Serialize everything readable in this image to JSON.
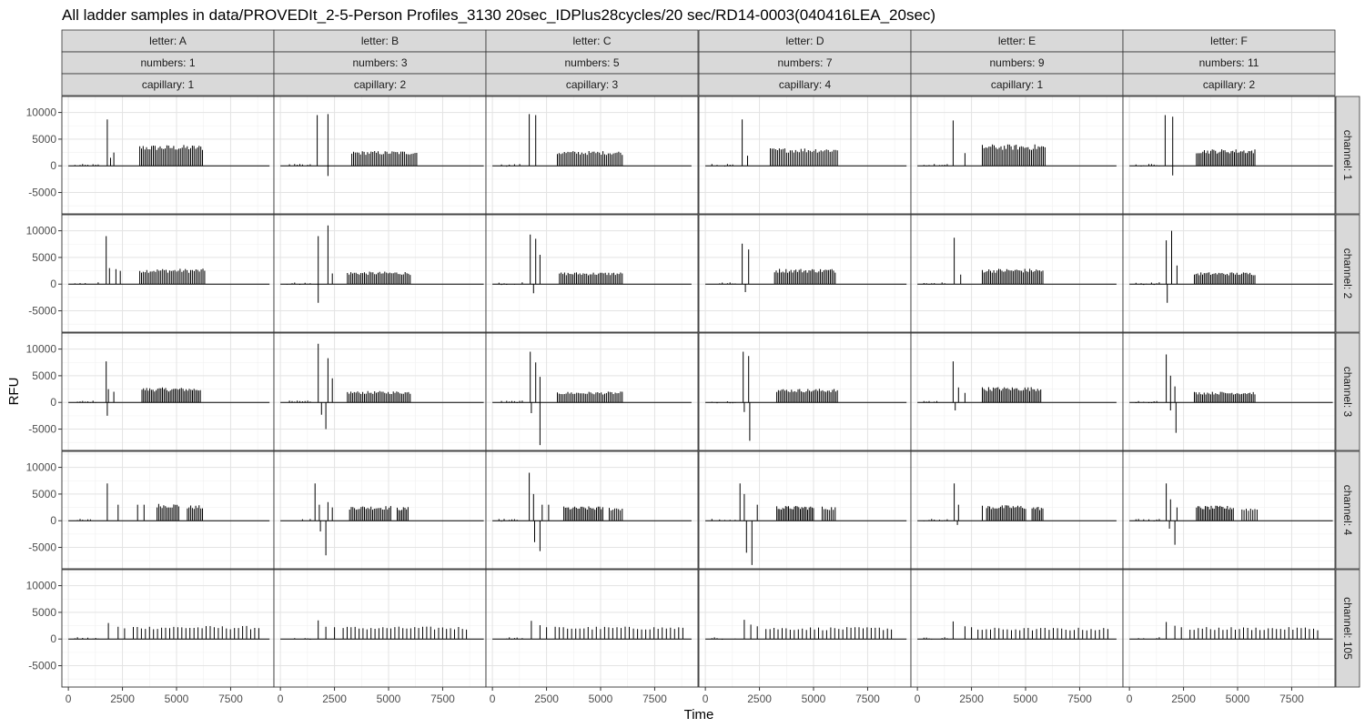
{
  "chart_data": {
    "type": "line",
    "title": "All ladder samples in data/PROVEDIt_2-5-Person Profiles_3130 20sec_IDPlus28cycles/20 sec/RD14-0003(040416LEA_20sec)",
    "xlabel": "Time",
    "ylabel": "RFU",
    "xlim": [
      -300,
      9500
    ],
    "ylim": [
      -9000,
      13000
    ],
    "x_ticks": [
      0,
      2500,
      5000,
      7500
    ],
    "y_ticks": [
      -5000,
      0,
      5000,
      10000
    ],
    "grid": true,
    "facet_columns": [
      {
        "letter": "letter: A",
        "numbers": "numbers: 1",
        "capillary": "capillary: 1"
      },
      {
        "letter": "letter: B",
        "numbers": "numbers: 3",
        "capillary": "capillary: 2"
      },
      {
        "letter": "letter: C",
        "numbers": "numbers: 5",
        "capillary": "capillary: 3"
      },
      {
        "letter": "letter: D",
        "numbers": "numbers: 7",
        "capillary": "capillary: 4"
      },
      {
        "letter": "letter: E",
        "numbers": "numbers: 9",
        "capillary": "capillary: 1"
      },
      {
        "letter": "letter: F",
        "numbers": "numbers: 11",
        "capillary": "capillary: 2"
      }
    ],
    "facet_rows": [
      "channel: 1",
      "channel: 2",
      "channel: 3",
      "channel: 4",
      "channel: 105"
    ],
    "series_end_x": [
      9300,
      9400,
      9200,
      9300,
      9200,
      9400
    ],
    "panels": [
      [
        {
          "primer": [
            [
              1800,
              8700
            ],
            [
              1950,
              1500
            ],
            [
              2100,
              2500
            ]
          ],
          "neg": [],
          "clusters": [
            {
              "start": 3300,
              "end": 6200,
              "count": 38,
              "height": 3500
            }
          ]
        },
        {
          "primer": [
            [
              1750,
              9000
            ],
            [
              1900,
              3000
            ],
            [
              2200,
              2800
            ],
            [
              2400,
              2500
            ]
          ],
          "neg": [],
          "clusters": [
            {
              "start": 3300,
              "end": 6300,
              "count": 38,
              "height": 2600
            }
          ]
        },
        {
          "primer": [
            [
              1750,
              7700
            ],
            [
              1850,
              2500
            ],
            [
              2100,
              2000
            ]
          ],
          "neg": [
            [
              1800,
              -2500
            ]
          ],
          "clusters": [
            {
              "start": 3400,
              "end": 6100,
              "count": 38,
              "height": 2500
            }
          ]
        },
        {
          "primer": [
            [
              1800,
              7000
            ],
            [
              2300,
              3000
            ],
            [
              3200,
              3000
            ],
            [
              3500,
              3000
            ]
          ],
          "neg": [],
          "clusters": [
            {
              "start": 4100,
              "end": 5100,
              "count": 14,
              "height": 2900
            },
            {
              "start": 5500,
              "end": 6200,
              "count": 10,
              "height": 2600
            }
          ]
        },
        {
          "primer": [
            [
              1850,
              3000
            ],
            [
              2300,
              2300
            ],
            [
              2600,
              2000
            ]
          ],
          "neg": [],
          "clusters": [
            {
              "start": 3000,
              "end": 8800,
              "count": 32,
              "height": 2200
            }
          ]
        }
      ],
      [
        {
          "primer": [
            [
              1700,
              9500
            ],
            [
              2200,
              9700
            ]
          ],
          "neg": [
            [
              2200,
              -1900
            ]
          ],
          "clusters": [
            {
              "start": 3300,
              "end": 6300,
              "count": 38,
              "height": 2500
            }
          ]
        },
        {
          "primer": [
            [
              1750,
              9000
            ],
            [
              2200,
              11000
            ],
            [
              2400,
              2000
            ]
          ],
          "neg": [
            [
              1750,
              -3500
            ]
          ],
          "clusters": [
            {
              "start": 3100,
              "end": 6000,
              "count": 38,
              "height": 2100
            }
          ]
        },
        {
          "primer": [
            [
              1750,
              11000
            ],
            [
              2200,
              8300
            ],
            [
              2400,
              4500
            ]
          ],
          "neg": [
            [
              1900,
              -2300
            ],
            [
              2100,
              -5000
            ]
          ],
          "clusters": [
            {
              "start": 3100,
              "end": 6000,
              "count": 38,
              "height": 1900
            }
          ]
        },
        {
          "primer": [
            [
              1600,
              7000
            ],
            [
              1800,
              3000
            ],
            [
              2200,
              3500
            ],
            [
              2400,
              2500
            ]
          ],
          "neg": [
            [
              1850,
              -2000
            ],
            [
              2100,
              -6500
            ]
          ],
          "clusters": [
            {
              "start": 3200,
              "end": 5100,
              "count": 26,
              "height": 2500
            },
            {
              "start": 5400,
              "end": 5900,
              "count": 8,
              "height": 2300
            }
          ]
        },
        {
          "primer": [
            [
              1750,
              3500
            ],
            [
              2100,
              2300
            ],
            [
              2500,
              2200
            ]
          ],
          "neg": [],
          "clusters": [
            {
              "start": 2900,
              "end": 8600,
              "count": 32,
              "height": 2100
            }
          ]
        }
      ],
      [
        {
          "primer": [
            [
              1700,
              9700
            ],
            [
              2000,
              9500
            ]
          ],
          "neg": [],
          "clusters": [
            {
              "start": 3000,
              "end": 6000,
              "count": 38,
              "height": 2500
            }
          ]
        },
        {
          "primer": [
            [
              1750,
              9300
            ],
            [
              2000,
              8500
            ],
            [
              2200,
              5500
            ]
          ],
          "neg": [
            [
              1900,
              -1700
            ]
          ],
          "clusters": [
            {
              "start": 3100,
              "end": 6000,
              "count": 38,
              "height": 2000
            }
          ]
        },
        {
          "primer": [
            [
              1750,
              9500
            ],
            [
              2000,
              7500
            ],
            [
              2200,
              4800
            ]
          ],
          "neg": [
            [
              1800,
              -2000
            ],
            [
              2200,
              -8000
            ]
          ],
          "clusters": [
            {
              "start": 3000,
              "end": 6000,
              "count": 38,
              "height": 1800
            }
          ]
        },
        {
          "primer": [
            [
              1700,
              9000
            ],
            [
              1900,
              5000
            ],
            [
              2300,
              3000
            ],
            [
              2600,
              3000
            ]
          ],
          "neg": [
            [
              1950,
              -4000
            ],
            [
              2200,
              -5700
            ]
          ],
          "clusters": [
            {
              "start": 3300,
              "end": 5100,
              "count": 26,
              "height": 2400
            },
            {
              "start": 5400,
              "end": 6000,
              "count": 8,
              "height": 2300
            }
          ]
        },
        {
          "primer": [
            [
              1800,
              3400
            ],
            [
              2200,
              2600
            ],
            [
              2500,
              2200
            ]
          ],
          "neg": [],
          "clusters": [
            {
              "start": 2900,
              "end": 8800,
              "count": 32,
              "height": 2100
            }
          ]
        }
      ],
      [
        {
          "primer": [
            [
              1700,
              8700
            ],
            [
              1950,
              1900
            ]
          ],
          "neg": [],
          "clusters": [
            {
              "start": 3000,
              "end": 6100,
              "count": 38,
              "height": 3000
            }
          ]
        },
        {
          "primer": [
            [
              1700,
              7600
            ],
            [
              2000,
              6500
            ]
          ],
          "neg": [
            [
              1850,
              -1500
            ]
          ],
          "clusters": [
            {
              "start": 3200,
              "end": 6000,
              "count": 38,
              "height": 2600
            }
          ]
        },
        {
          "primer": [
            [
              1750,
              9500
            ],
            [
              2000,
              8700
            ]
          ],
          "neg": [
            [
              1800,
              -1800
            ],
            [
              2050,
              -7200
            ]
          ],
          "clusters": [
            {
              "start": 3300,
              "end": 6100,
              "count": 38,
              "height": 2300
            }
          ]
        },
        {
          "primer": [
            [
              1600,
              7000
            ],
            [
              1800,
              5000
            ],
            [
              2400,
              3000
            ]
          ],
          "neg": [
            [
              1900,
              -6000
            ],
            [
              2150,
              -8300
            ]
          ],
          "clusters": [
            {
              "start": 3300,
              "end": 5000,
              "count": 26,
              "height": 2500
            },
            {
              "start": 5400,
              "end": 6000,
              "count": 8,
              "height": 2400
            }
          ]
        },
        {
          "primer": [
            [
              1800,
              3600
            ],
            [
              2100,
              2700
            ],
            [
              2400,
              2400
            ]
          ],
          "neg": [],
          "clusters": [
            {
              "start": 2800,
              "end": 8600,
              "count": 32,
              "height": 2000
            }
          ]
        }
      ],
      [
        {
          "primer": [
            [
              1650,
              8500
            ],
            [
              2200,
              2400
            ]
          ],
          "neg": [],
          "clusters": [
            {
              "start": 3000,
              "end": 5900,
              "count": 38,
              "height": 3600
            }
          ]
        },
        {
          "primer": [
            [
              1700,
              8700
            ],
            [
              2000,
              1800
            ]
          ],
          "neg": [],
          "clusters": [
            {
              "start": 3000,
              "end": 5800,
              "count": 38,
              "height": 2600
            }
          ]
        },
        {
          "primer": [
            [
              1650,
              7700
            ],
            [
              1900,
              2800
            ],
            [
              2200,
              1800
            ]
          ],
          "neg": [
            [
              1750,
              -1500
            ]
          ],
          "clusters": [
            {
              "start": 3000,
              "end": 5700,
              "count": 38,
              "height": 2600
            }
          ]
        },
        {
          "primer": [
            [
              1700,
              7000
            ],
            [
              1900,
              3000
            ],
            [
              3000,
              2800
            ]
          ],
          "neg": [
            [
              1850,
              -800
            ]
          ],
          "clusters": [
            {
              "start": 3200,
              "end": 5000,
              "count": 26,
              "height": 2600
            },
            {
              "start": 5300,
              "end": 5800,
              "count": 8,
              "height": 2400
            }
          ]
        },
        {
          "primer": [
            [
              1650,
              3300
            ],
            [
              2200,
              2400
            ],
            [
              2500,
              2200
            ]
          ],
          "neg": [],
          "clusters": [
            {
              "start": 2800,
              "end": 8800,
              "count": 32,
              "height": 1900
            }
          ]
        }
      ],
      [
        {
          "primer": [
            [
              1650,
              9500
            ],
            [
              2000,
              9200
            ]
          ],
          "neg": [
            [
              2000,
              -1800
            ]
          ],
          "clusters": [
            {
              "start": 3100,
              "end": 5800,
              "count": 38,
              "height": 2800
            }
          ]
        },
        {
          "primer": [
            [
              1700,
              8200
            ],
            [
              1950,
              10000
            ],
            [
              2200,
              3500
            ]
          ],
          "neg": [
            [
              1750,
              -3500
            ]
          ],
          "clusters": [
            {
              "start": 3000,
              "end": 5800,
              "count": 38,
              "height": 2000
            }
          ]
        },
        {
          "primer": [
            [
              1700,
              9000
            ],
            [
              1900,
              5000
            ],
            [
              2100,
              3000
            ]
          ],
          "neg": [
            [
              1900,
              -1500
            ],
            [
              2150,
              -5700
            ]
          ],
          "clusters": [
            {
              "start": 3000,
              "end": 5800,
              "count": 38,
              "height": 1800
            }
          ]
        },
        {
          "primer": [
            [
              1700,
              7000
            ],
            [
              1900,
              4000
            ],
            [
              2200,
              2500
            ]
          ],
          "neg": [
            [
              1850,
              -1500
            ],
            [
              2100,
              -4500
            ]
          ],
          "clusters": [
            {
              "start": 3100,
              "end": 4800,
              "count": 26,
              "height": 2500
            },
            {
              "start": 5200,
              "end": 5900,
              "count": 8,
              "height": 2200
            }
          ]
        },
        {
          "primer": [
            [
              1700,
              3200
            ],
            [
              2100,
              2500
            ],
            [
              2400,
              2200
            ]
          ],
          "neg": [],
          "clusters": [
            {
              "start": 2800,
              "end": 8700,
              "count": 32,
              "height": 2000
            }
          ]
        }
      ]
    ]
  }
}
